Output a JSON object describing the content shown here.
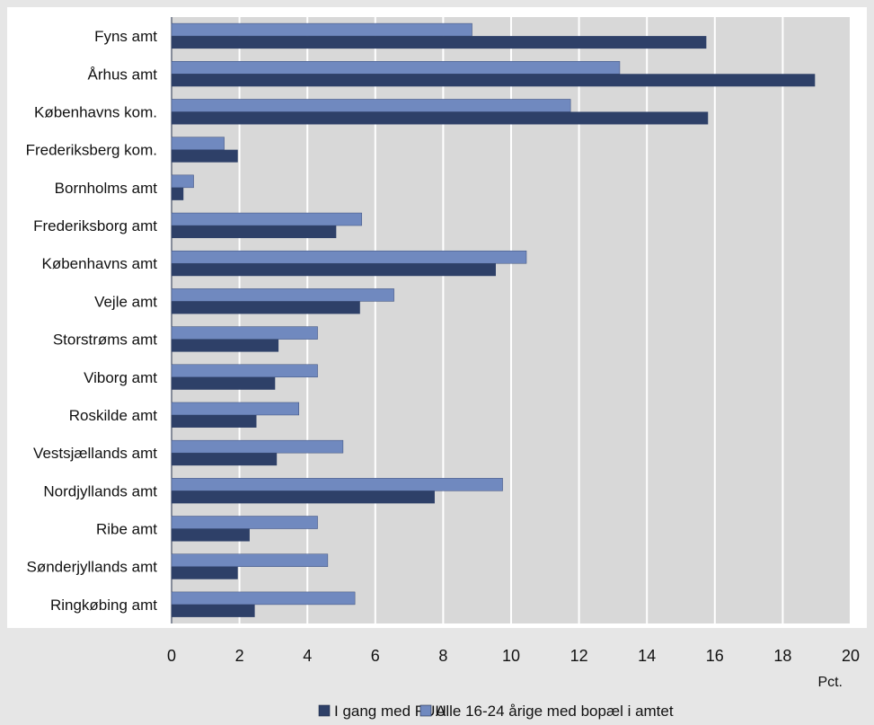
{
  "chart_data": {
    "type": "bar",
    "orientation": "horizontal",
    "categories": [
      "Fyns amt",
      "Århus amt",
      "Københavns kom.",
      "Frederiksberg kom.",
      "Bornholms amt",
      "Frederiksborg amt",
      "Københavns amt",
      "Vejle amt",
      "Storstrøms amt",
      "Viborg amt",
      "Roskilde amt",
      "Vestsjællands amt",
      "Nordjyllands amt",
      "Ribe amt",
      "Sønderjyllands amt",
      "Ringkøbing amt"
    ],
    "series": [
      {
        "name": "I gang med FUU",
        "color": "#2e4068",
        "values": [
          15.75,
          18.95,
          15.8,
          1.95,
          0.35,
          4.85,
          9.55,
          5.55,
          3.15,
          3.05,
          2.5,
          3.1,
          7.75,
          2.3,
          1.95,
          2.45
        ]
      },
      {
        "name": "Alle 16-24 årige med bopæl i amtet",
        "color": "#7089bf",
        "values": [
          8.85,
          13.2,
          11.75,
          1.55,
          0.65,
          5.6,
          10.45,
          6.55,
          4.3,
          4.3,
          3.75,
          5.05,
          9.75,
          4.3,
          4.6,
          5.4
        ]
      }
    ],
    "xlim": [
      0,
      20
    ],
    "xticks": [
      "0",
      "2",
      "4",
      "6",
      "8",
      "10",
      "12",
      "14",
      "16",
      "18",
      "20"
    ],
    "xunit": "Pct.",
    "xlabel": "",
    "ylabel": "",
    "title": "",
    "grid": true,
    "legend_position": "bottom"
  },
  "colors": {
    "page_background": "#e6e6e6",
    "plot_background": "#d8d8d8",
    "gridline": "#ffffff"
  }
}
